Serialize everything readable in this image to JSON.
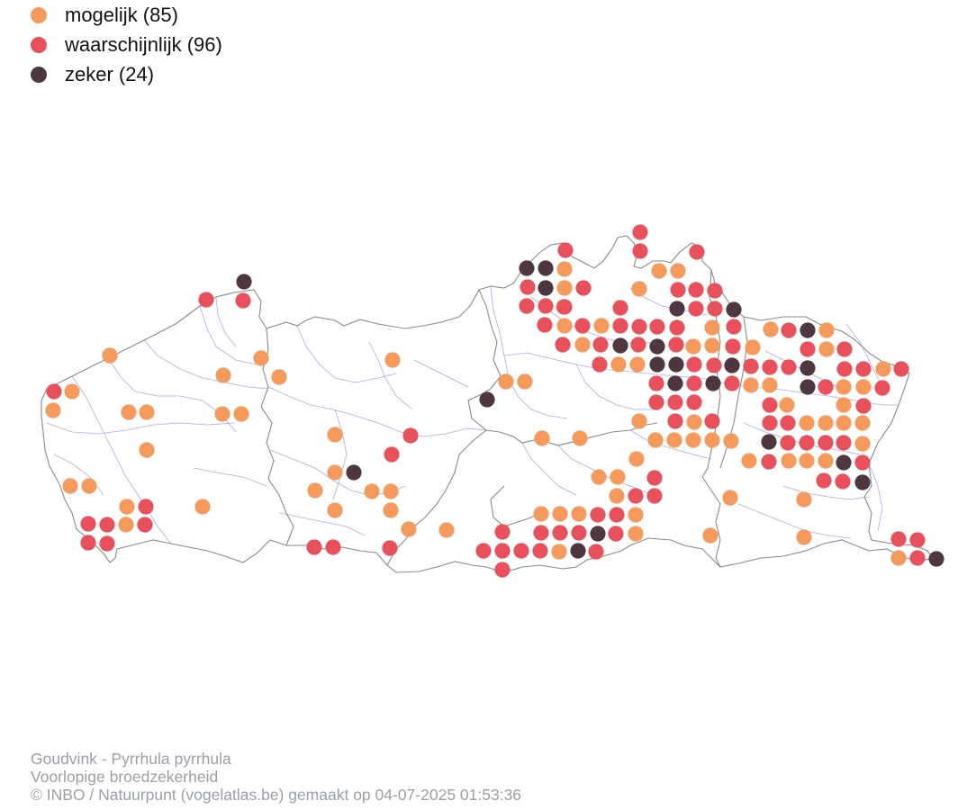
{
  "legend": [
    {
      "label": "mogelijk (85)",
      "color": "#f6995c"
    },
    {
      "label": "waarschijnlijk (96)",
      "color": "#e8505b"
    },
    {
      "label": "zeker (24)",
      "color": "#4e3740"
    }
  ],
  "caption": {
    "line1": "Goudvink - Pyrrhula pyrrhula",
    "line2": "Voorlopige broedzekerheid",
    "line3": "© INBO / Natuurpunt (vogelatlas.be) gemaakt op 04-07-2025 01:53:36"
  },
  "colors": {
    "border": "#8a8a8a",
    "rivers": "#9b9bf5",
    "mogelijk": "#f6995c",
    "waarschijnlijk": "#e8505b",
    "zeker": "#4e3740"
  }
}
